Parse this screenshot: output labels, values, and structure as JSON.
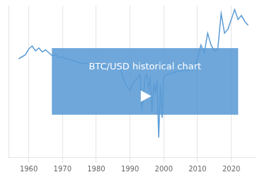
{
  "chart_data": {
    "type": "line",
    "color": "#5b9bd5",
    "x": [
      1957,
      1958,
      1959,
      1960,
      1961,
      1962,
      1963,
      1964,
      1965,
      1966,
      1967,
      1968,
      1969,
      1970,
      1971,
      1972,
      1973,
      1974,
      1975,
      1976,
      1977,
      1978,
      1979,
      1980,
      1981,
      1982,
      1983,
      1984,
      1985,
      1986,
      1987,
      1988,
      1989,
      1990,
      1991,
      1992,
      1993,
      1993.5,
      1994,
      1994.5,
      1995,
      1995.5,
      1996,
      1996.5,
      1997,
      1997.5,
      1998,
      1998.5,
      1999,
      1999.5,
      2000,
      2001,
      2002,
      2003,
      2004,
      2005,
      2006,
      2007,
      2008,
      2009,
      2010,
      2011,
      2012,
      2013,
      2014,
      2015,
      2016,
      2017,
      2018,
      2019,
      2020,
      2021,
      2022,
      2023,
      2024,
      2025
    ],
    "values": [
      0.5,
      0.6,
      0.7,
      1.0,
      1.15,
      0.9,
      1.05,
      0.85,
      0.95,
      0.8,
      0.65,
      0.7,
      0.55,
      0.6,
      0.5,
      0.48,
      0.42,
      0.35,
      0.3,
      0.28,
      0.25,
      0.22,
      0.2,
      0.2,
      0.18,
      0.15,
      0.12,
      0.1,
      0.08,
      0.07,
      0.08,
      -0.5,
      -0.9,
      -1.1,
      -0.7,
      -0.5,
      -0.3,
      -2.0,
      -1.5,
      -0.4,
      -0.3,
      -1.0,
      -0.5,
      -2.2,
      -0.8,
      -1.2,
      -0.6,
      -3.5,
      -0.8,
      -2.5,
      -0.4,
      -0.3,
      -0.25,
      -0.2,
      -0.15,
      -0.12,
      -0.1,
      -0.08,
      -0.05,
      -0.02,
      0.5,
      1.2,
      0.8,
      1.8,
      1.2,
      0.9,
      1.0,
      2.8,
      1.8,
      2.0,
      2.5,
      3.0,
      2.5,
      2.7,
      2.4,
      2.2
    ],
    "xlim": [
      1954,
      2027
    ],
    "xticks": [
      1960,
      1970,
      1980,
      1990,
      2000,
      2010,
      2020
    ],
    "ylim": [
      -4.5,
      3.2
    ],
    "yticks": [],
    "grid": true,
    "tick_labels": "x",
    "annotation": "BTC/USD historical chart"
  }
}
